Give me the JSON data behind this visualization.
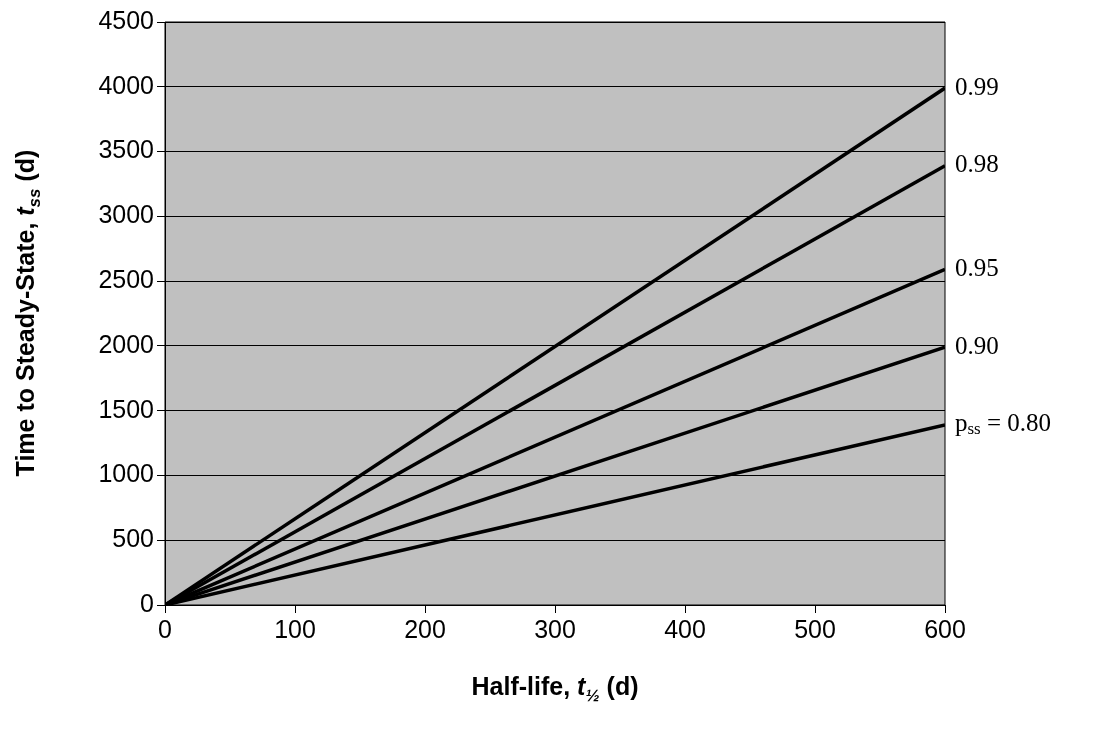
{
  "chart_data": {
    "type": "line",
    "xlabel": "Half-life, t$_{½}$ (d)",
    "ylabel": "Time to Steady-State, t$_{ss}$ (d)",
    "x": [
      0,
      600
    ],
    "series": [
      {
        "name": "0.99",
        "color": "#000000",
        "values": [
          0,
          3990
        ]
      },
      {
        "name": "0.98",
        "color": "#000000",
        "values": [
          0,
          3390
        ]
      },
      {
        "name": "0.95",
        "color": "#000000",
        "values": [
          0,
          2590
        ]
      },
      {
        "name": "0.90",
        "color": "#000000",
        "values": [
          0,
          1990
        ]
      },
      {
        "name": "p$_{ss}$ = 0.80",
        "color": "#000000",
        "values": [
          0,
          1390
        ]
      }
    ],
    "xlim": [
      0,
      600
    ],
    "xticks": [
      0,
      100,
      200,
      300,
      400,
      500,
      600
    ],
    "ylim": [
      0,
      4500
    ],
    "yticks": [
      0,
      500,
      1000,
      1500,
      2000,
      2500,
      3000,
      3500,
      4000,
      4500
    ],
    "grid": "y",
    "legend": false,
    "line_style": "solid"
  }
}
